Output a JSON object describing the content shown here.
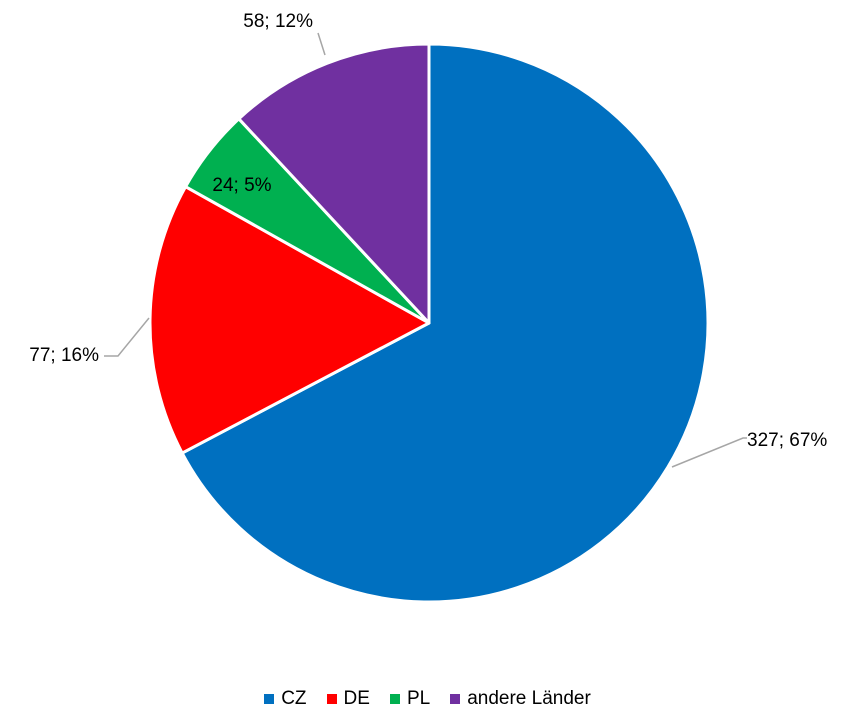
{
  "chart_data": {
    "type": "pie",
    "title": "",
    "slices": [
      {
        "name": "CZ",
        "value": 327,
        "percent": "67%",
        "label": "327; 67%",
        "color": "#0070C0"
      },
      {
        "name": "DE",
        "value": 77,
        "percent": "16%",
        "label": "77; 16%",
        "color": "#FF0000"
      },
      {
        "name": "PL",
        "value": 24,
        "percent": "5%",
        "label": "24; 5%",
        "color": "#00B050"
      },
      {
        "name": "andere Länder",
        "value": 58,
        "percent": "12%",
        "label": "58; 12%",
        "color": "#7030A0"
      }
    ],
    "legend_position": "bottom",
    "data_labels": true
  }
}
